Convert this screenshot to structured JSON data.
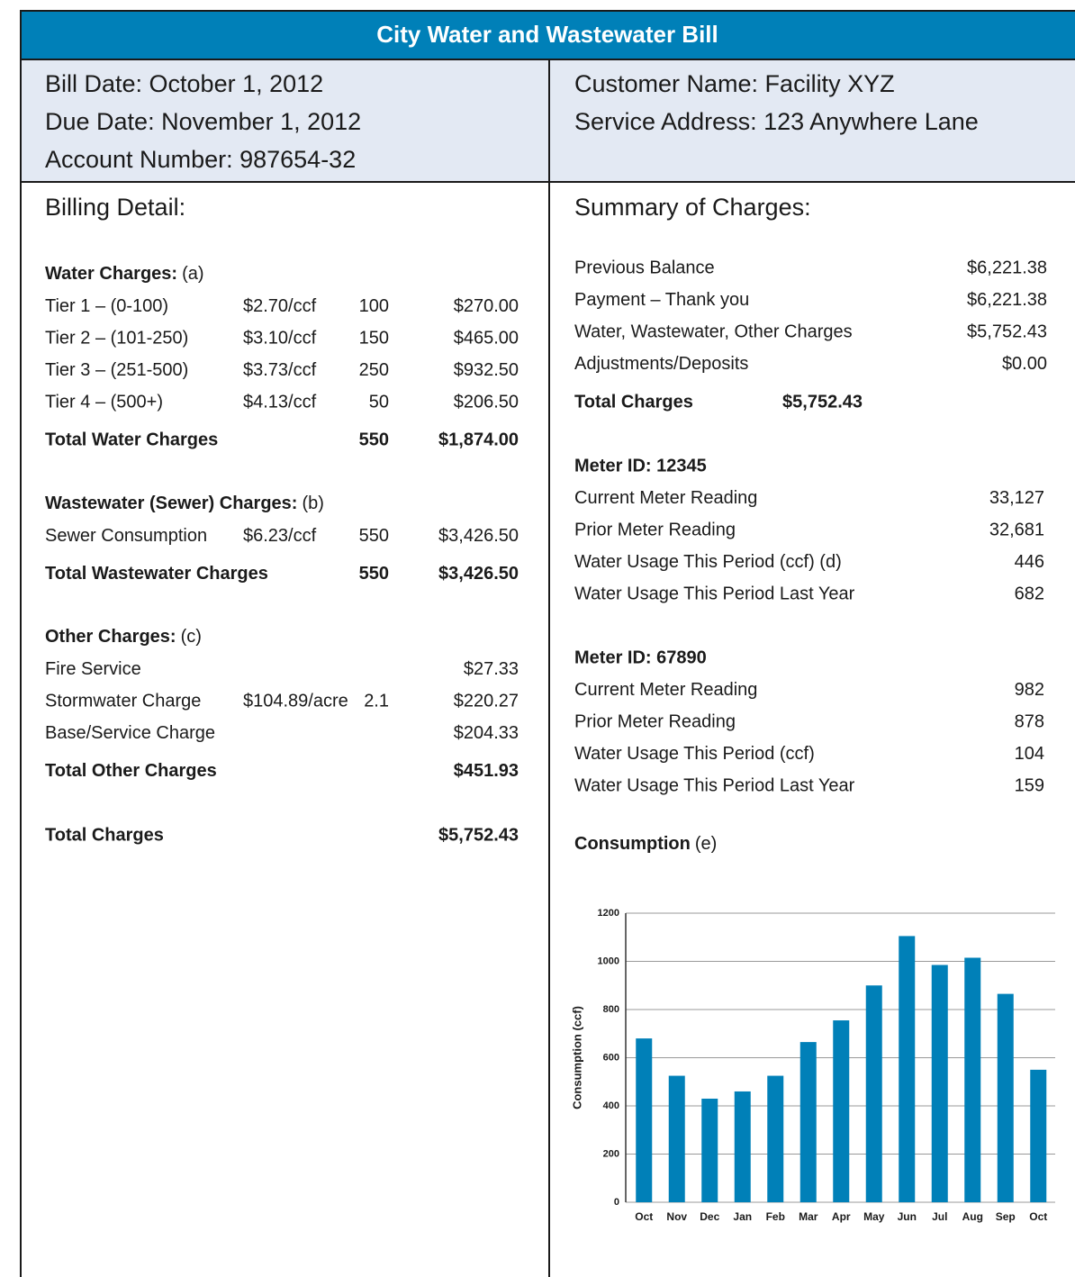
{
  "header": {
    "title": "City Water and Wastewater Bill"
  },
  "info": {
    "left": [
      "Bill Date: October 1, 2012",
      "Due Date:  November 1, 2012",
      "Account Number: 987654-32"
    ],
    "right": [
      "Customer Name: Facility XYZ",
      "Service Address: 123 Anywhere Lane"
    ]
  },
  "billing": {
    "title": "Billing Detail:",
    "sections": [
      {
        "heading": "Water Charges:",
        "note": "(a)",
        "rows": [
          {
            "label": "Tier 1 – (0-100)",
            "rate": "$2.70/ccf",
            "qty": "100",
            "amount": "$270.00"
          },
          {
            "label": "Tier 2 – (101-250)",
            "rate": "$3.10/ccf",
            "qty": "150",
            "amount": "$465.00"
          },
          {
            "label": "Tier 3 – (251-500)",
            "rate": "$3.73/ccf",
            "qty": "250",
            "amount": "$932.50"
          },
          {
            "label": "Tier 4 – (500+)",
            "rate": "$4.13/ccf",
            "qty": "50",
            "amount": "$206.50"
          }
        ],
        "total": {
          "label": "Total Water Charges",
          "qty": "550",
          "amount": "$1,874.00"
        }
      },
      {
        "heading": "Wastewater (Sewer) Charges:",
        "note": "(b)",
        "rows": [
          {
            "label": "Sewer Consumption",
            "rate": "$6.23/ccf",
            "qty": "550",
            "amount": "$3,426.50"
          }
        ],
        "total": {
          "label": "Total Wastewater Charges",
          "qty": "550",
          "amount": "$3,426.50"
        }
      },
      {
        "heading": "Other Charges:",
        "note": "(c)",
        "rows": [
          {
            "label": "Fire Service",
            "amount": "$27.33"
          },
          {
            "label": "Stormwater Charge",
            "rate": "$104.89/acre",
            "qty": "2.1",
            "amount": "$220.27"
          },
          {
            "label": "Base/Service Charge",
            "amount": "$204.33"
          }
        ],
        "total": {
          "label": "Total Other Charges",
          "amount": "$451.93"
        }
      }
    ],
    "grand_total": {
      "label": "Total Charges",
      "amount": "$5,752.43"
    }
  },
  "summary": {
    "title": "Summary of Charges:",
    "rows": [
      {
        "label": "Previous Balance",
        "amount": "$6,221.38"
      },
      {
        "label": "Payment – Thank you",
        "amount": "$6,221.38"
      },
      {
        "label": "Water, Wastewater, Other Charges",
        "amount": "$5,752.43"
      },
      {
        "label": "Adjustments/Deposits",
        "amount": "$0.00"
      }
    ],
    "total": {
      "label": "Total Charges",
      "amount": "$5,752.43"
    },
    "meters": [
      {
        "title": "Meter ID: 12345",
        "rows": [
          {
            "label": "Current Meter Reading",
            "value": "33,127"
          },
          {
            "label": "Prior Meter Reading",
            "value": "32,681"
          },
          {
            "label": "Water Usage This Period (ccf) (d)",
            "value": "446"
          },
          {
            "label": "Water Usage This Period Last Year",
            "value": "682"
          }
        ]
      },
      {
        "title": "Meter ID: 67890",
        "rows": [
          {
            "label": "Current Meter Reading",
            "value": "982"
          },
          {
            "label": "Prior Meter Reading",
            "value": "878"
          },
          {
            "label": "Water Usage This Period (ccf)",
            "value": "104"
          },
          {
            "label": "Water Usage This Period Last Year",
            "value": "159"
          }
        ]
      }
    ],
    "consumption": {
      "heading": "Consumption",
      "note": "(e)"
    }
  },
  "chart_data": {
    "type": "bar",
    "ylabel": "Consumption (ccf)",
    "categories": [
      "Oct",
      "Nov",
      "Dec",
      "Jan",
      "Feb",
      "Mar",
      "Apr",
      "May",
      "Jun",
      "Jul",
      "Aug",
      "Sep",
      "Oct"
    ],
    "values": [
      680,
      525,
      430,
      460,
      525,
      665,
      755,
      900,
      1105,
      985,
      1015,
      865,
      550
    ],
    "color": "#0080b8",
    "ylim": [
      0,
      1200
    ],
    "yticks": [
      0,
      200,
      400,
      600,
      800,
      1000,
      1200
    ],
    "grid": true
  }
}
